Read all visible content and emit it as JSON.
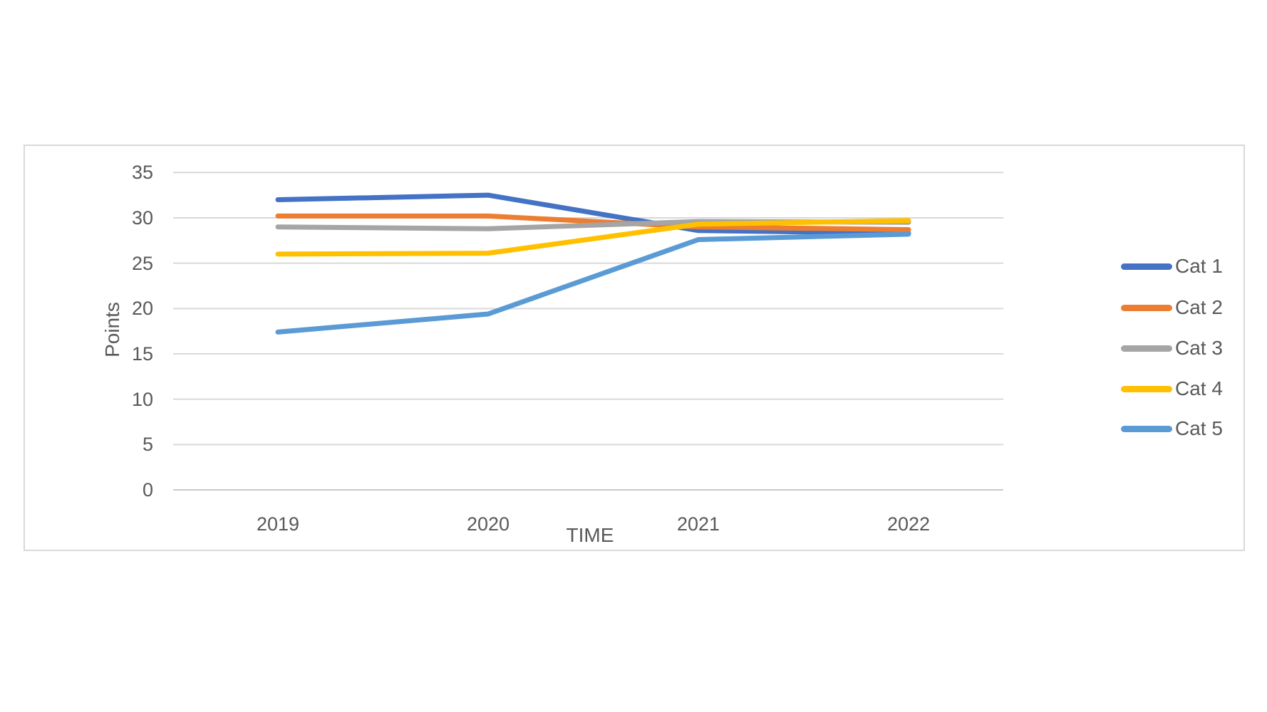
{
  "chart_data": {
    "type": "line",
    "title": "",
    "xlabel": "TIME",
    "ylabel": "Points",
    "categories": [
      "2019",
      "2020",
      "2021",
      "2022"
    ],
    "yticks": [
      35,
      30,
      25,
      20,
      15,
      10,
      5,
      0
    ],
    "ylim": [
      0,
      35
    ],
    "grid": true,
    "legend_position": "right",
    "series": [
      {
        "name": "Cat 1",
        "color": "#4472C4",
        "values": [
          32.0,
          32.5,
          28.6,
          28.3
        ]
      },
      {
        "name": "Cat 2",
        "color": "#ED7D31",
        "values": [
          30.2,
          30.2,
          29.0,
          28.7
        ]
      },
      {
        "name": "Cat 3",
        "color": "#A5A5A5",
        "values": [
          29.0,
          28.8,
          29.6,
          29.5
        ]
      },
      {
        "name": "Cat 4",
        "color": "#FFC000",
        "values": [
          26.0,
          26.1,
          29.3,
          29.7
        ]
      },
      {
        "name": "Cat 5",
        "color": "#5B9BD5",
        "values": [
          17.4,
          19.4,
          27.6,
          28.2
        ]
      }
    ],
    "colors": {
      "gridline": "#D9D9D9",
      "baseline": "#C9C9C9",
      "axis_text": "#595959",
      "chart_border": "#D9D9D9",
      "background": "#FFFFFF"
    }
  }
}
